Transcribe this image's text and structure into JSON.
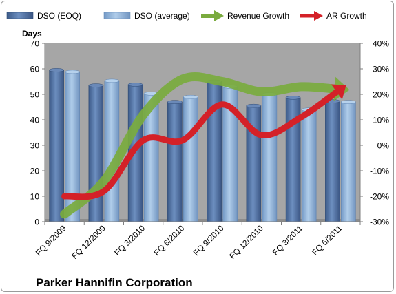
{
  "chart_data": {
    "type": "bar",
    "title": "Parker Hannifin Corporation",
    "ylabel_left": "Days",
    "ylim_left": [
      0,
      70
    ],
    "yticks_left": [
      "0",
      "10",
      "20",
      "30",
      "40",
      "50",
      "60",
      "70"
    ],
    "ylim_right": [
      -30,
      40
    ],
    "yticks_right": [
      "-30%",
      "-20%",
      "-10%",
      "0%",
      "10%",
      "20%",
      "30%",
      "40%"
    ],
    "categories": [
      "FQ 9/2009",
      "FQ 12/2009",
      "FQ 3/2010",
      "FQ 6/2010",
      "FQ 9/2010",
      "FQ 12/2010",
      "FQ 3/2011",
      "FQ 6/2011"
    ],
    "series": [
      {
        "name": "DSO (EOQ)",
        "type": "bar",
        "axis": "left",
        "color": "#4a6a9c",
        "values": [
          59.5,
          53.5,
          53.8,
          47,
          55,
          45.5,
          48.7,
          47.3
        ]
      },
      {
        "name": "DSO (average)",
        "type": "bar",
        "axis": "left",
        "color": "#8eb3dc",
        "values": [
          58.8,
          55.3,
          50.3,
          49,
          53,
          50,
          44,
          47
        ]
      },
      {
        "name": "Revenue Growth",
        "type": "arrow-line",
        "axis": "right",
        "color": "#7aab3e",
        "values": [
          -27,
          -14,
          12,
          26,
          25,
          21,
          23,
          22
        ]
      },
      {
        "name": "AR Growth",
        "type": "arrow-line",
        "axis": "right",
        "color": "#d42128",
        "values": [
          -20,
          -18,
          2,
          2,
          16,
          4,
          11,
          22
        ]
      }
    ],
    "legend_position": "top",
    "grid": false,
    "background_color": "#a6a6a6"
  }
}
